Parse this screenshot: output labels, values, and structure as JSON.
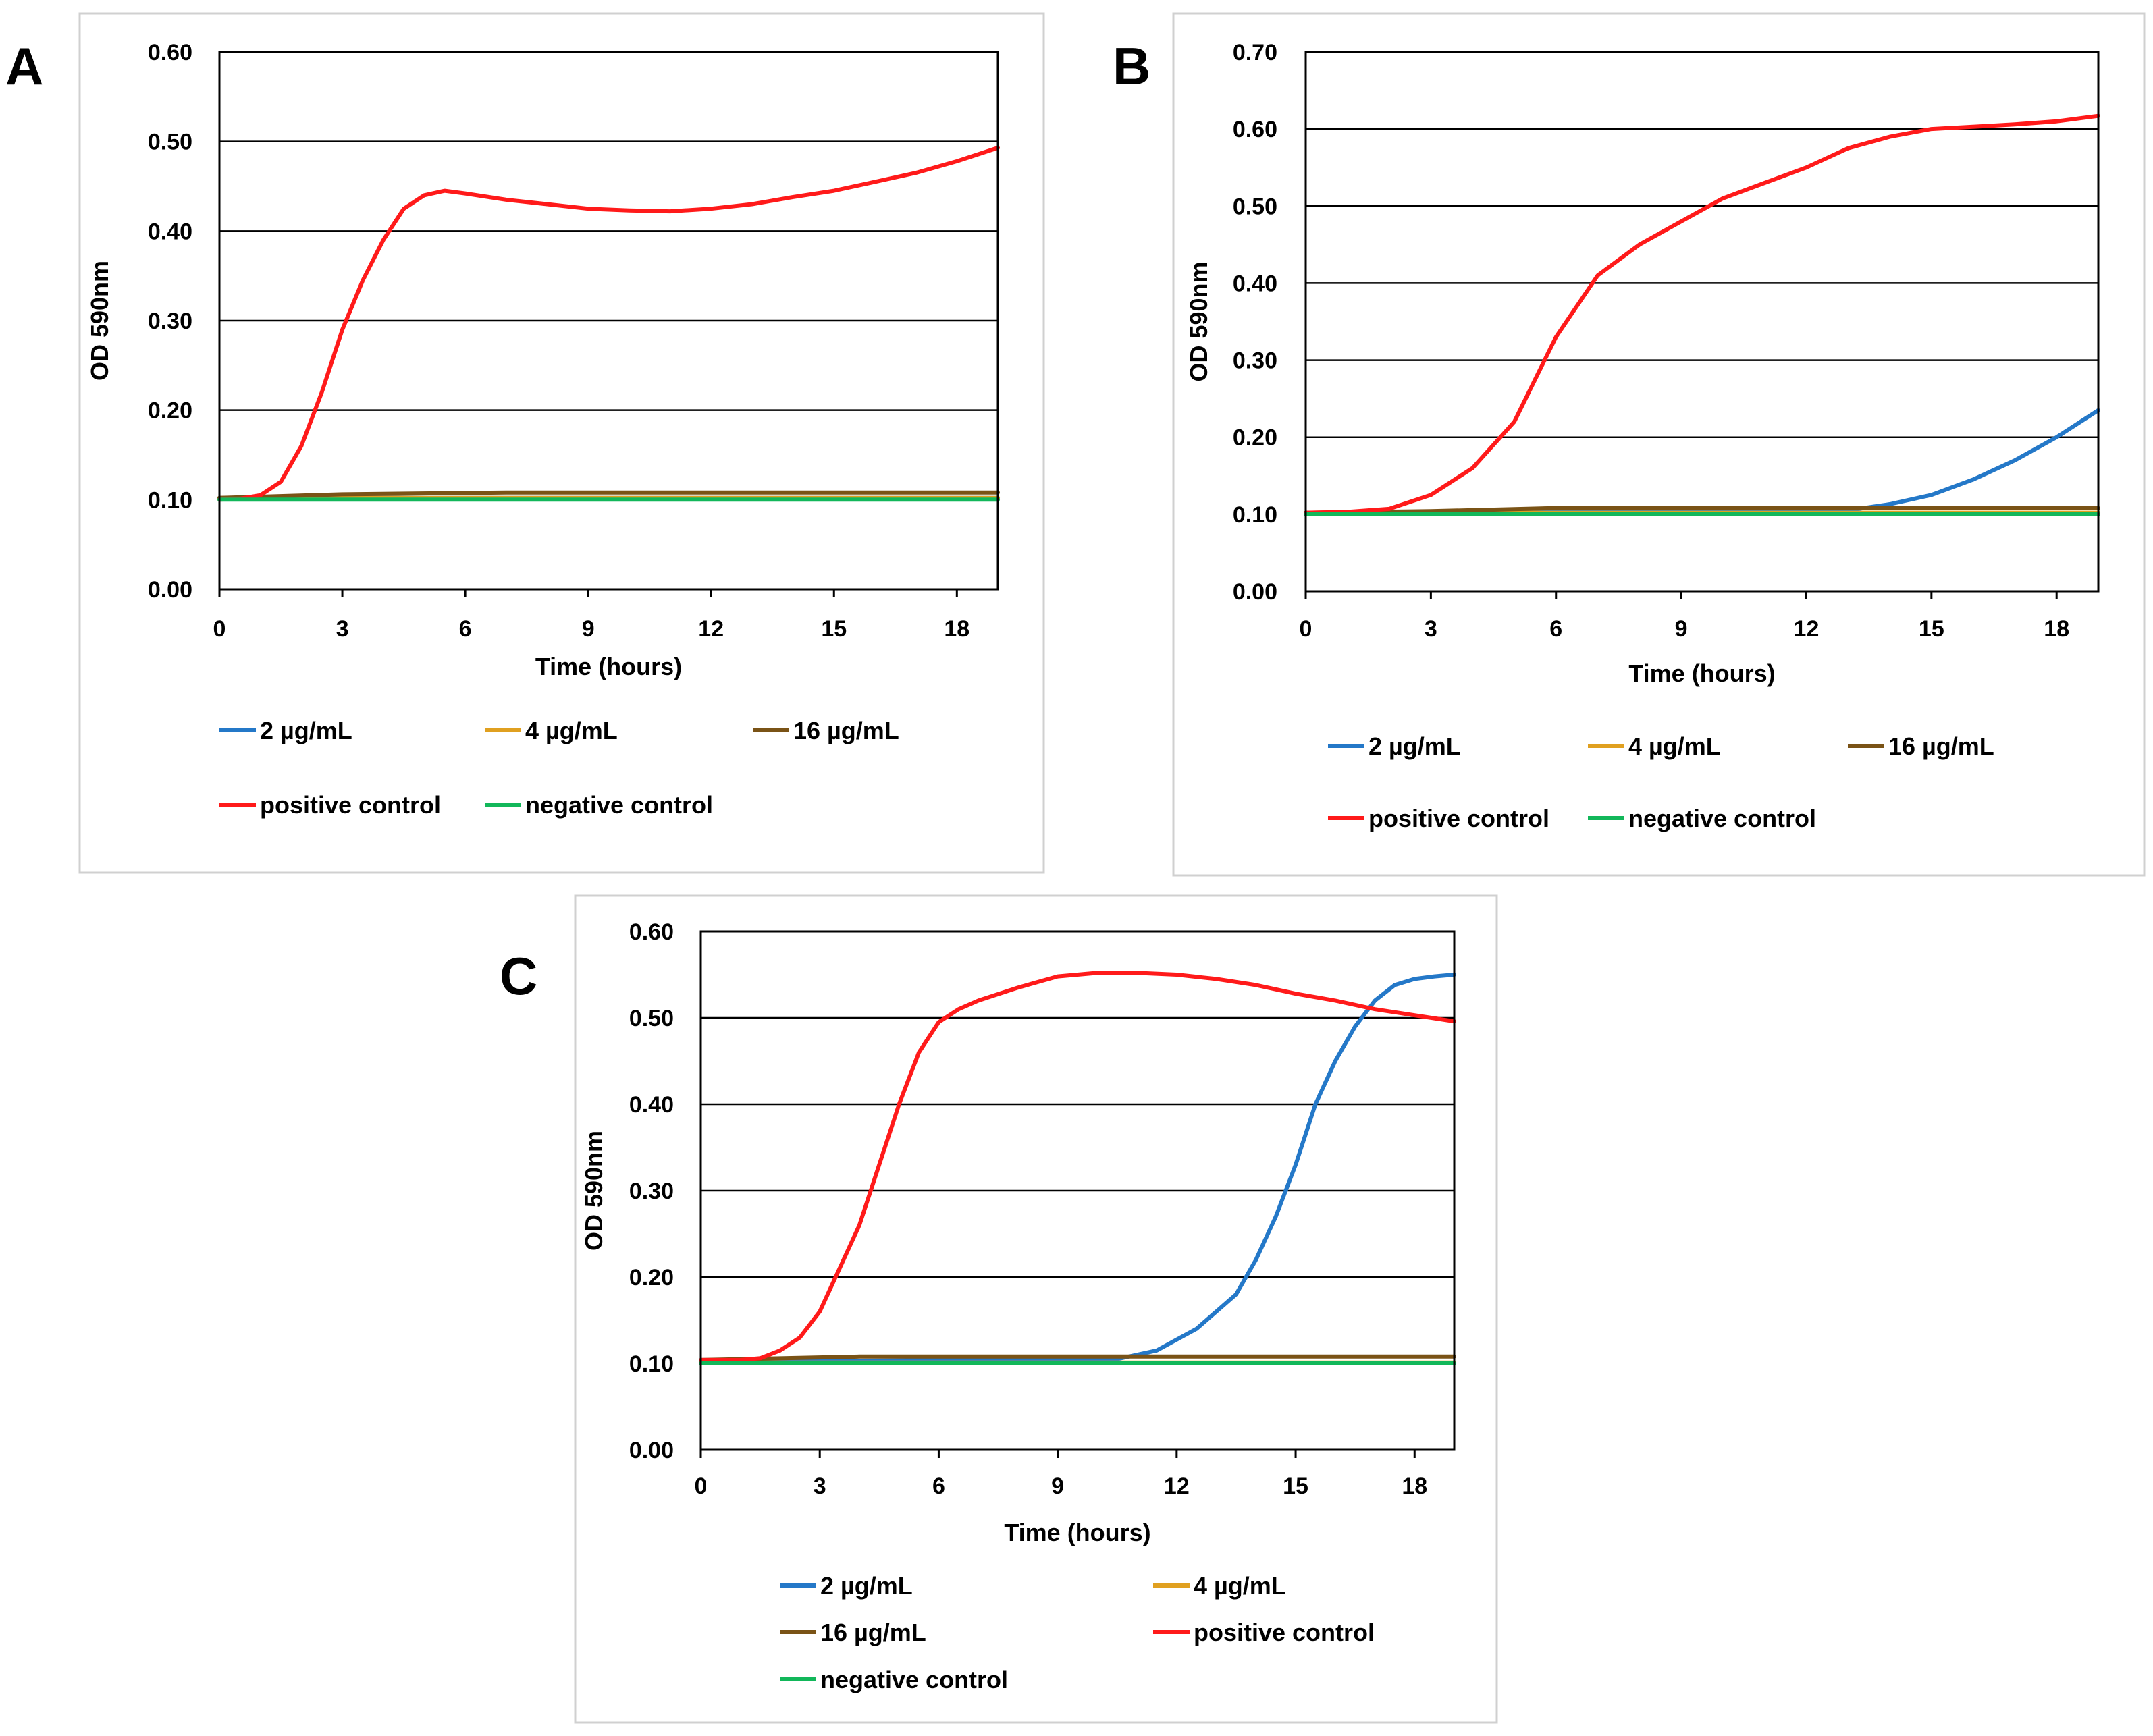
{
  "colors": {
    "2 µg/mL": "#2478c8",
    "4 µg/mL": "#e0a020",
    "16 µg/mL": "#7a5316",
    "positive control": "#ff1a1a",
    "negative control": "#12b75a",
    "grid": "#000000",
    "frame": "#d0d0d0"
  },
  "chart_data": [
    {
      "panel": "A",
      "type": "line",
      "xlabel": "Time (hours)",
      "ylabel": "OD 590nm",
      "xlim": [
        0,
        19
      ],
      "ylim": [
        0,
        0.6
      ],
      "xticks": [
        0,
        3,
        6,
        9,
        12,
        15,
        18
      ],
      "yticks": [
        0,
        0.1,
        0.2,
        0.3,
        0.4,
        0.5,
        0.6
      ],
      "grid": "horizontal",
      "legend_position": "bottom",
      "series": [
        {
          "name": "2 µg/mL",
          "x": [
            0,
            19
          ],
          "y": [
            0.102,
            0.102
          ]
        },
        {
          "name": "4 µg/mL",
          "x": [
            0,
            19
          ],
          "y": [
            0.102,
            0.102
          ]
        },
        {
          "name": "16 µg/mL",
          "x": [
            0,
            3,
            7,
            19
          ],
          "y": [
            0.102,
            0.106,
            0.108,
            0.108
          ]
        },
        {
          "name": "positive control",
          "x": [
            0,
            0.5,
            1,
            1.5,
            2,
            2.5,
            3,
            3.5,
            4,
            4.5,
            5,
            5.5,
            6,
            7,
            8,
            9,
            10,
            11,
            12,
            13,
            14,
            15,
            16,
            17,
            18,
            19
          ],
          "y": [
            0.1,
            0.101,
            0.105,
            0.12,
            0.16,
            0.22,
            0.29,
            0.345,
            0.39,
            0.425,
            0.44,
            0.445,
            0.442,
            0.435,
            0.43,
            0.425,
            0.423,
            0.422,
            0.425,
            0.43,
            0.438,
            0.445,
            0.455,
            0.465,
            0.478,
            0.493
          ]
        },
        {
          "name": "negative control",
          "x": [
            0,
            19
          ],
          "y": [
            0.1,
            0.1
          ]
        }
      ]
    },
    {
      "panel": "B",
      "type": "line",
      "xlabel": "Time (hours)",
      "ylabel": "OD 590nm",
      "xlim": [
        0,
        19
      ],
      "ylim": [
        0,
        0.7
      ],
      "xticks": [
        0,
        3,
        6,
        9,
        12,
        15,
        18
      ],
      "yticks": [
        0,
        0.1,
        0.2,
        0.3,
        0.4,
        0.5,
        0.6,
        0.7
      ],
      "grid": "horizontal",
      "legend_position": "bottom",
      "series": [
        {
          "name": "2 µg/mL",
          "x": [
            0,
            13,
            14,
            15,
            16,
            17,
            18,
            19
          ],
          "y": [
            0.102,
            0.105,
            0.113,
            0.125,
            0.145,
            0.17,
            0.2,
            0.235
          ]
        },
        {
          "name": "4 µg/mL",
          "x": [
            0,
            19
          ],
          "y": [
            0.102,
            0.102
          ]
        },
        {
          "name": "16 µg/mL",
          "x": [
            0,
            3,
            6,
            19
          ],
          "y": [
            0.102,
            0.104,
            0.108,
            0.108
          ]
        },
        {
          "name": "positive control",
          "x": [
            0,
            1,
            2,
            3,
            4,
            5,
            6,
            7,
            8,
            9,
            10,
            11,
            12,
            13,
            14,
            15,
            16,
            17,
            18,
            19
          ],
          "y": [
            0.102,
            0.103,
            0.107,
            0.125,
            0.16,
            0.22,
            0.33,
            0.41,
            0.45,
            0.48,
            0.51,
            0.53,
            0.55,
            0.575,
            0.59,
            0.6,
            0.603,
            0.606,
            0.61,
            0.617
          ]
        },
        {
          "name": "negative control",
          "x": [
            0,
            19
          ],
          "y": [
            0.1,
            0.1
          ]
        }
      ]
    },
    {
      "panel": "C",
      "type": "line",
      "xlabel": "Time (hours)",
      "ylabel": "OD 590nm",
      "xlim": [
        0,
        19
      ],
      "ylim": [
        0,
        0.6
      ],
      "xticks": [
        0,
        3,
        6,
        9,
        12,
        15,
        18
      ],
      "yticks": [
        0,
        0.1,
        0.2,
        0.3,
        0.4,
        0.5,
        0.6
      ],
      "grid": "horizontal",
      "legend_position": "bottom",
      "series": [
        {
          "name": "2 µg/mL",
          "x": [
            0,
            10.5,
            11.5,
            12.5,
            13.5,
            14,
            14.5,
            15,
            15.5,
            16,
            16.5,
            17,
            17.5,
            18,
            18.5,
            19
          ],
          "y": [
            0.102,
            0.105,
            0.115,
            0.14,
            0.18,
            0.22,
            0.27,
            0.33,
            0.4,
            0.45,
            0.49,
            0.52,
            0.538,
            0.545,
            0.548,
            0.55
          ]
        },
        {
          "name": "4 µg/mL",
          "x": [
            0,
            19
          ],
          "y": [
            0.101,
            0.101
          ]
        },
        {
          "name": "16 µg/mL",
          "x": [
            0,
            4,
            19
          ],
          "y": [
            0.104,
            0.108,
            0.108
          ]
        },
        {
          "name": "positive control",
          "x": [
            0,
            1,
            1.5,
            2,
            2.5,
            3,
            3.5,
            4,
            4.5,
            5,
            5.5,
            6,
            6.5,
            7,
            8,
            9,
            10,
            11,
            12,
            13,
            14,
            15,
            16,
            17,
            18,
            19
          ],
          "y": [
            0.104,
            0.104,
            0.106,
            0.115,
            0.13,
            0.16,
            0.21,
            0.26,
            0.33,
            0.4,
            0.46,
            0.495,
            0.51,
            0.52,
            0.535,
            0.548,
            0.552,
            0.552,
            0.55,
            0.545,
            0.538,
            0.528,
            0.52,
            0.51,
            0.503,
            0.496
          ]
        },
        {
          "name": "negative control",
          "x": [
            0,
            19
          ],
          "y": [
            0.1,
            0.1
          ]
        }
      ]
    }
  ]
}
